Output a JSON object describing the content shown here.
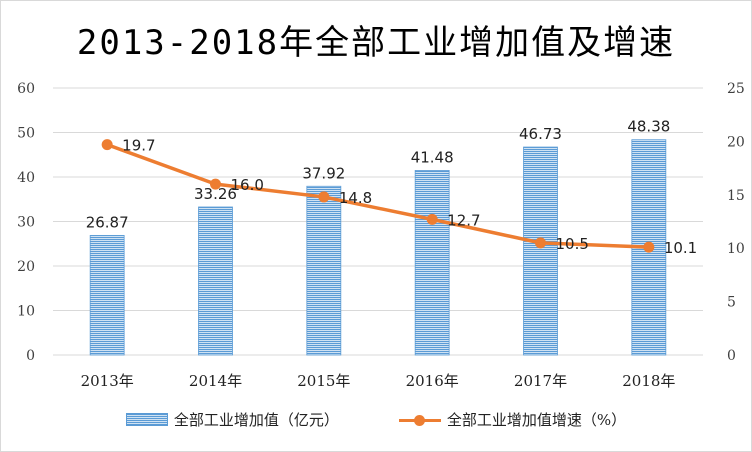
{
  "chart_data": {
    "type": "bar",
    "title": "2013-2018年全部工业增加值及增速",
    "categories": [
      "2013年",
      "2014年",
      "2015年",
      "2016年",
      "2017年",
      "2018年"
    ],
    "series": [
      {
        "name": "全部工业增加值（亿元）",
        "type": "bar",
        "axis": "left",
        "values": [
          26.87,
          33.26,
          37.92,
          41.48,
          46.73,
          48.38
        ],
        "labels": [
          "26.87",
          "33.26",
          "37.92",
          "41.48",
          "46.73",
          "48.38"
        ],
        "color": "#5b9bd5"
      },
      {
        "name": "全部工业增加值增速（%）",
        "type": "line",
        "axis": "right",
        "values": [
          19.7,
          16.0,
          14.8,
          12.7,
          10.5,
          10.1
        ],
        "labels": [
          "19.7",
          "16.0",
          "14.8",
          "12.7",
          "10.5",
          "10.1"
        ],
        "color": "#ed7d31"
      }
    ],
    "y_left": {
      "lim": [
        0,
        60
      ],
      "ticks": [
        0,
        10,
        20,
        30,
        40,
        50,
        60
      ]
    },
    "y_right": {
      "lim": [
        0,
        25
      ],
      "ticks": [
        0,
        5,
        10,
        15,
        20,
        25
      ]
    },
    "grid": true,
    "legend": "bottom"
  }
}
